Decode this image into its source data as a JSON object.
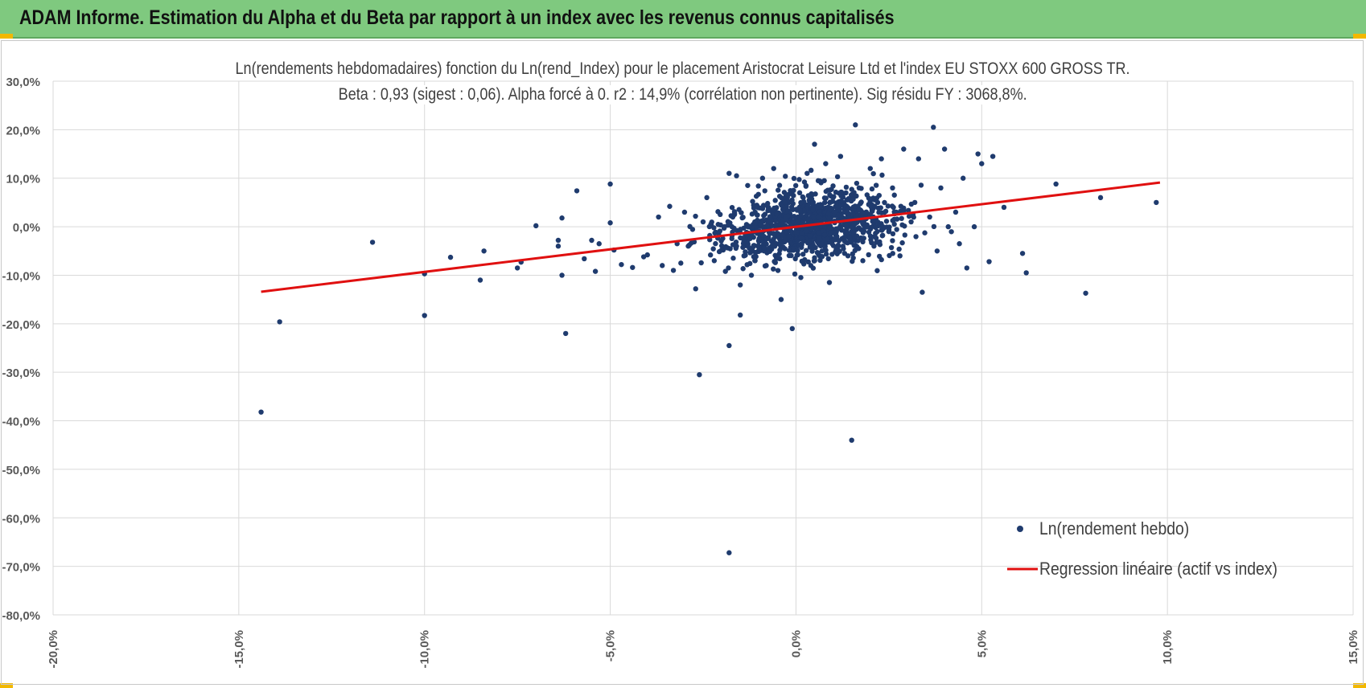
{
  "header": {
    "title": "ADAM Informe. Estimation du Alpha et du Beta par rapport à un index avec les revenus connus capitalisés"
  },
  "colors": {
    "header_bg": "#7fc97f",
    "corner_accent": "#f2b800",
    "scatter": "#1f3b6e",
    "regression": "#e01010",
    "grid": "#d9d9d9",
    "axis_text": "#595959"
  },
  "chart_data": {
    "type": "scatter",
    "title": "Ln(rendements hebdomadaires) fonction du Ln(rend_Index) pour le placement Aristocrat Leisure Ltd et l'index EU STOXX 600 GROSS TR.",
    "subtitle": "Beta : 0,93 (sigest : 0,06).  Alpha forcé à 0. r2 : 14,9% (corrélation non pertinente). Sig résidu FY : 3068,8%.",
    "xlabel": "",
    "ylabel": "",
    "xlim": [
      -0.2,
      0.15
    ],
    "ylim": [
      -0.8,
      0.3
    ],
    "x_ticks": [
      -0.2,
      -0.15,
      -0.1,
      -0.05,
      0.0,
      0.05,
      0.1,
      0.15
    ],
    "x_tick_labels": [
      "-20,0%",
      "-15,0%",
      "-10,0%",
      "-5,0%",
      "0,0%",
      "5,0%",
      "10,0%",
      "15,0%"
    ],
    "y_ticks": [
      0.3,
      0.2,
      0.1,
      0.0,
      -0.1,
      -0.2,
      -0.3,
      -0.4,
      -0.5,
      -0.6,
      -0.7,
      -0.8
    ],
    "y_tick_labels": [
      "30,0%",
      "20,0%",
      "10,0%",
      "0,0%",
      "-10,0%",
      "-20,0%",
      "-30,0%",
      "-40,0%",
      "-50,0%",
      "-60,0%",
      "-70,0%",
      "-80,0%"
    ],
    "grid": true,
    "legend_position": "bottom-right",
    "series": [
      {
        "name": "Ln(rendement hebdo)",
        "type": "scatter",
        "points": [
          [
            -0.144,
            -0.382
          ],
          [
            -0.139,
            -0.196
          ],
          [
            -0.114,
            -0.032
          ],
          [
            -0.1,
            -0.183
          ],
          [
            -0.1,
            -0.097
          ],
          [
            -0.093,
            -0.063
          ],
          [
            -0.085,
            -0.11
          ],
          [
            -0.084,
            -0.05
          ],
          [
            -0.075,
            -0.085
          ],
          [
            -0.074,
            -0.073
          ],
          [
            -0.07,
            0.002
          ],
          [
            -0.064,
            -0.028
          ],
          [
            -0.064,
            -0.04
          ],
          [
            -0.063,
            -0.1
          ],
          [
            -0.063,
            0.018
          ],
          [
            -0.062,
            -0.22
          ],
          [
            -0.059,
            0.074
          ],
          [
            -0.057,
            -0.066
          ],
          [
            -0.055,
            -0.028
          ],
          [
            -0.054,
            -0.092
          ],
          [
            -0.053,
            -0.035
          ],
          [
            -0.05,
            0.088
          ],
          [
            -0.05,
            0.008
          ],
          [
            -0.049,
            -0.048
          ],
          [
            -0.047,
            -0.078
          ],
          [
            -0.044,
            -0.084
          ],
          [
            -0.041,
            -0.062
          ],
          [
            -0.04,
            -0.058
          ],
          [
            -0.037,
            0.02
          ],
          [
            -0.036,
            -0.08
          ],
          [
            -0.034,
            0.042
          ],
          [
            -0.033,
            -0.09
          ],
          [
            -0.032,
            -0.035
          ],
          [
            -0.031,
            -0.075
          ],
          [
            -0.03,
            0.03
          ],
          [
            -0.029,
            -0.04
          ],
          [
            -0.027,
            -0.128
          ],
          [
            -0.026,
            -0.305
          ],
          [
            -0.025,
            0.01
          ],
          [
            -0.024,
            0.06
          ],
          [
            -0.022,
            -0.07
          ],
          [
            -0.021,
            0.031
          ],
          [
            -0.02,
            -0.048
          ],
          [
            -0.019,
            -0.092
          ],
          [
            -0.018,
            0.11
          ],
          [
            -0.018,
            -0.245
          ],
          [
            -0.017,
            0.02
          ],
          [
            -0.016,
            -0.04
          ],
          [
            -0.016,
            0.105
          ],
          [
            -0.015,
            -0.12
          ],
          [
            -0.015,
            -0.182
          ],
          [
            -0.014,
            -0.06
          ],
          [
            -0.013,
            0.085
          ],
          [
            -0.012,
            -0.1
          ],
          [
            -0.011,
            0.03
          ],
          [
            -0.01,
            -0.04
          ],
          [
            -0.009,
            0.1
          ],
          [
            -0.008,
            -0.08
          ],
          [
            -0.007,
            0.01
          ],
          [
            -0.006,
            0.12
          ],
          [
            -0.005,
            -0.065
          ],
          [
            -0.004,
            -0.15
          ],
          [
            -0.003,
            0.05
          ],
          [
            -0.002,
            -0.02
          ],
          [
            -0.001,
            -0.21
          ],
          [
            0.0,
            0.0
          ],
          [
            0.001,
            0.07
          ],
          [
            0.002,
            -0.03
          ],
          [
            0.003,
            0.11
          ],
          [
            0.004,
            -0.08
          ],
          [
            0.005,
            0.17
          ],
          [
            0.006,
            0.02
          ],
          [
            0.007,
            -0.05
          ],
          [
            0.008,
            0.13
          ],
          [
            0.009,
            -0.115
          ],
          [
            0.01,
            0.06
          ],
          [
            0.011,
            -0.02
          ],
          [
            0.012,
            0.145
          ],
          [
            0.013,
            0.03
          ],
          [
            0.014,
            -0.06
          ],
          [
            0.015,
            -0.44
          ],
          [
            0.016,
            0.21
          ],
          [
            0.017,
            0.08
          ],
          [
            0.018,
            -0.07
          ],
          [
            0.019,
            0.0
          ],
          [
            0.02,
            0.12
          ],
          [
            0.021,
            -0.04
          ],
          [
            0.022,
            0.05
          ],
          [
            0.023,
            0.14
          ],
          [
            0.025,
            -0.01
          ],
          [
            0.026,
            0.08
          ],
          [
            0.027,
            0.03
          ],
          [
            0.028,
            -0.06
          ],
          [
            0.029,
            0.16
          ],
          [
            0.031,
            0.01
          ],
          [
            0.032,
            0.05
          ],
          [
            0.033,
            0.14
          ],
          [
            0.034,
            -0.135
          ],
          [
            0.036,
            0.02
          ],
          [
            0.037,
            0.205
          ],
          [
            0.038,
            -0.05
          ],
          [
            0.039,
            0.08
          ],
          [
            0.04,
            0.16
          ],
          [
            0.041,
            0.0
          ],
          [
            0.043,
            0.03
          ],
          [
            0.044,
            -0.035
          ],
          [
            0.045,
            0.1
          ],
          [
            0.046,
            -0.085
          ],
          [
            0.048,
            0.0
          ],
          [
            0.049,
            0.15
          ],
          [
            0.05,
            0.13
          ],
          [
            0.052,
            -0.072
          ],
          [
            0.053,
            0.145
          ],
          [
            0.056,
            0.04
          ],
          [
            0.061,
            -0.055
          ],
          [
            0.062,
            -0.095
          ],
          [
            0.07,
            0.088
          ],
          [
            0.078,
            -0.137
          ],
          [
            0.082,
            0.06
          ],
          [
            0.097,
            0.05
          ],
          [
            -0.018,
            -0.672
          ]
        ]
      },
      {
        "name": "Regression linéaire (actif vs index)",
        "type": "line",
        "points": [
          [
            -0.144,
            -0.134
          ],
          [
            0.098,
            0.091
          ]
        ]
      }
    ]
  }
}
